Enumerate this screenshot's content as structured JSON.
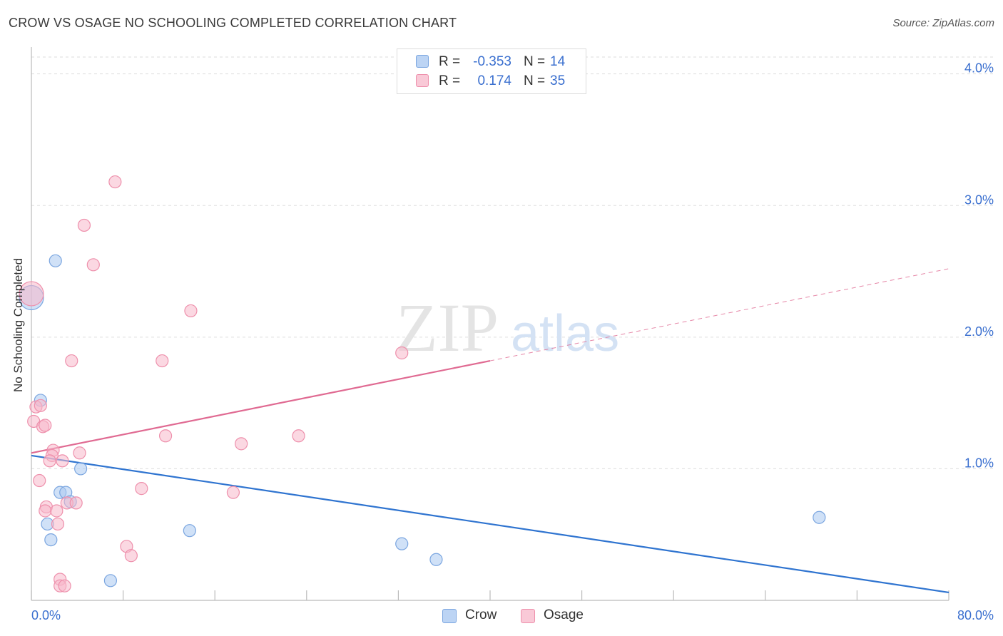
{
  "title": "CROW VS OSAGE NO SCHOOLING COMPLETED CORRELATION CHART",
  "source": "Source: ZipAtlas.com",
  "watermark": {
    "zip": "ZIP",
    "atlas": "atlas"
  },
  "legend": {
    "rows": [
      {
        "name": "Crow",
        "r_label": "R =",
        "r_value": "-0.353",
        "n_label": "N =",
        "n_value": "14"
      },
      {
        "name": "Osage",
        "r_label": "R =",
        "r_value": "0.174",
        "n_label": "N =",
        "n_value": "35"
      }
    ]
  },
  "bottom_legend": {
    "crow": "Crow",
    "osage": "Osage"
  },
  "colors": {
    "crow_fill": "#a9c8f0",
    "crow_stroke": "#7ba6e0",
    "crow_line": "#2f74d0",
    "osage_fill": "#f7b8ca",
    "osage_stroke": "#ee90ac",
    "osage_line": "#e06a92",
    "tick_label": "#3a6fcf",
    "grid": "#dddddd"
  },
  "chart_data": {
    "type": "scatter",
    "title": "CROW VS OSAGE NO SCHOOLING COMPLETED CORRELATION CHART",
    "xlabel": "",
    "ylabel": "No Schooling Completed",
    "xlim": [
      0,
      80
    ],
    "ylim": [
      0,
      4.15
    ],
    "x_tick_labels": [
      "0.0%",
      "80.0%"
    ],
    "y_ticks": [
      1.0,
      2.0,
      3.0,
      4.0
    ],
    "y_tick_labels": [
      "1.0%",
      "2.0%",
      "3.0%",
      "4.0%"
    ],
    "series": [
      {
        "name": "Crow",
        "points": [
          [
            0.0,
            2.3
          ],
          [
            2.1,
            2.58
          ],
          [
            0.8,
            1.52
          ],
          [
            4.3,
            1.0
          ],
          [
            2.5,
            0.82
          ],
          [
            3.0,
            0.82
          ],
          [
            3.4,
            0.75
          ],
          [
            1.4,
            0.58
          ],
          [
            1.7,
            0.46
          ],
          [
            13.8,
            0.53
          ],
          [
            6.9,
            0.15
          ],
          [
            32.3,
            0.43
          ],
          [
            35.3,
            0.31
          ],
          [
            68.7,
            0.63
          ]
        ],
        "trend": {
          "x": [
            0,
            80
          ],
          "y": [
            1.1,
            0.06
          ]
        }
      },
      {
        "name": "Osage",
        "points": [
          [
            0.0,
            2.33
          ],
          [
            7.3,
            3.18
          ],
          [
            4.6,
            2.85
          ],
          [
            5.4,
            2.55
          ],
          [
            13.9,
            2.2
          ],
          [
            3.5,
            1.82
          ],
          [
            11.4,
            1.82
          ],
          [
            32.3,
            1.88
          ],
          [
            0.4,
            1.47
          ],
          [
            0.8,
            1.48
          ],
          [
            0.2,
            1.36
          ],
          [
            1.0,
            1.32
          ],
          [
            1.2,
            1.33
          ],
          [
            11.7,
            1.25
          ],
          [
            18.3,
            1.19
          ],
          [
            23.3,
            1.25
          ],
          [
            1.9,
            1.14
          ],
          [
            1.8,
            1.1
          ],
          [
            1.6,
            1.06
          ],
          [
            2.7,
            1.06
          ],
          [
            4.2,
            1.12
          ],
          [
            0.7,
            0.91
          ],
          [
            9.6,
            0.85
          ],
          [
            17.6,
            0.82
          ],
          [
            1.3,
            0.71
          ],
          [
            1.2,
            0.68
          ],
          [
            2.2,
            0.68
          ],
          [
            3.1,
            0.74
          ],
          [
            3.9,
            0.74
          ],
          [
            2.3,
            0.58
          ],
          [
            8.3,
            0.41
          ],
          [
            8.7,
            0.34
          ],
          [
            2.5,
            0.16
          ],
          [
            2.5,
            0.11
          ],
          [
            2.9,
            0.11
          ]
        ],
        "trend": {
          "x": [
            0,
            40
          ],
          "y": [
            1.12,
            1.82
          ]
        },
        "trend_extension": {
          "x": [
            40,
            80
          ],
          "y": [
            1.82,
            2.52
          ]
        }
      }
    ]
  }
}
